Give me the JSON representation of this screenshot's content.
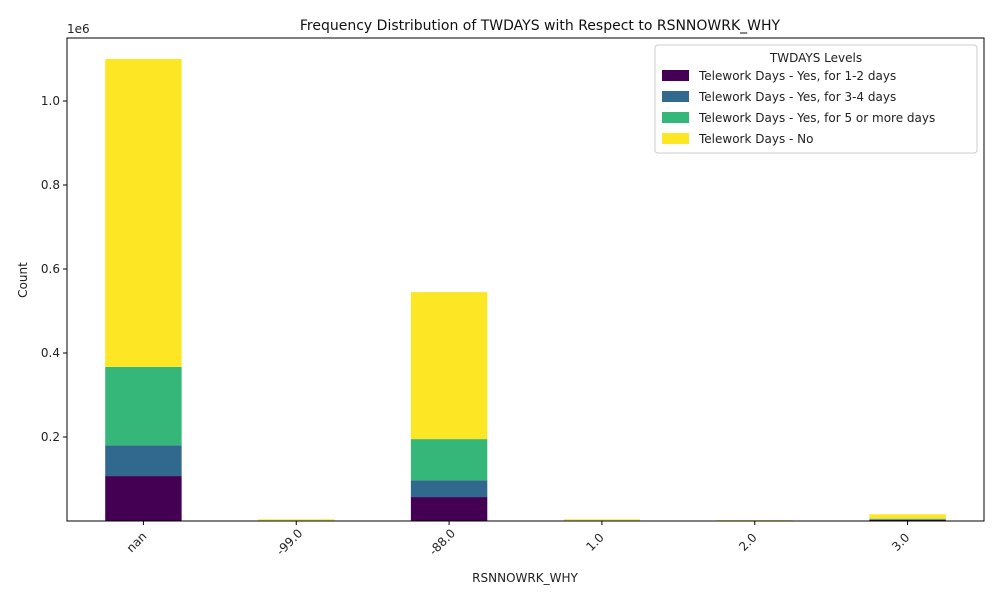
{
  "chart_data": {
    "type": "bar",
    "stacked": true,
    "title": "Frequency Distribution of TWDAYS with Respect to RSNNOWRK_WHY",
    "xlabel": "RSNNOWRK_WHY",
    "ylabel": "Count",
    "y_offset_label": "1e6",
    "categories": [
      "nan",
      "-99.0",
      "-88.0",
      "1.0",
      "2.0",
      "3.0"
    ],
    "ylim": [
      0,
      1150000
    ],
    "y_ticks": [
      200000,
      400000,
      600000,
      800000,
      1000000
    ],
    "y_tick_labels": [
      "0.2",
      "0.4",
      "0.6",
      "0.8",
      "1.0"
    ],
    "grid": false,
    "legend": {
      "title": "TWDAYS Levels",
      "placement": "top-right"
    },
    "series": [
      {
        "name": "Telework Days - Yes, for 1-2 days",
        "color": "#440154",
        "values": [
          107000,
          800,
          57000,
          800,
          400,
          3000
        ]
      },
      {
        "name": "Telework Days - Yes, for 3-4 days",
        "color": "#31688e",
        "values": [
          73000,
          300,
          40000,
          400,
          200,
          1000
        ]
      },
      {
        "name": "Telework Days - Yes, for 5 or more days",
        "color": "#35b779",
        "values": [
          187000,
          500,
          98000,
          500,
          300,
          1500
        ]
      },
      {
        "name": "Telework Days - No",
        "color": "#fde725",
        "values": [
          733000,
          2400,
          350000,
          2300,
          1100,
          10500
        ]
      }
    ]
  }
}
